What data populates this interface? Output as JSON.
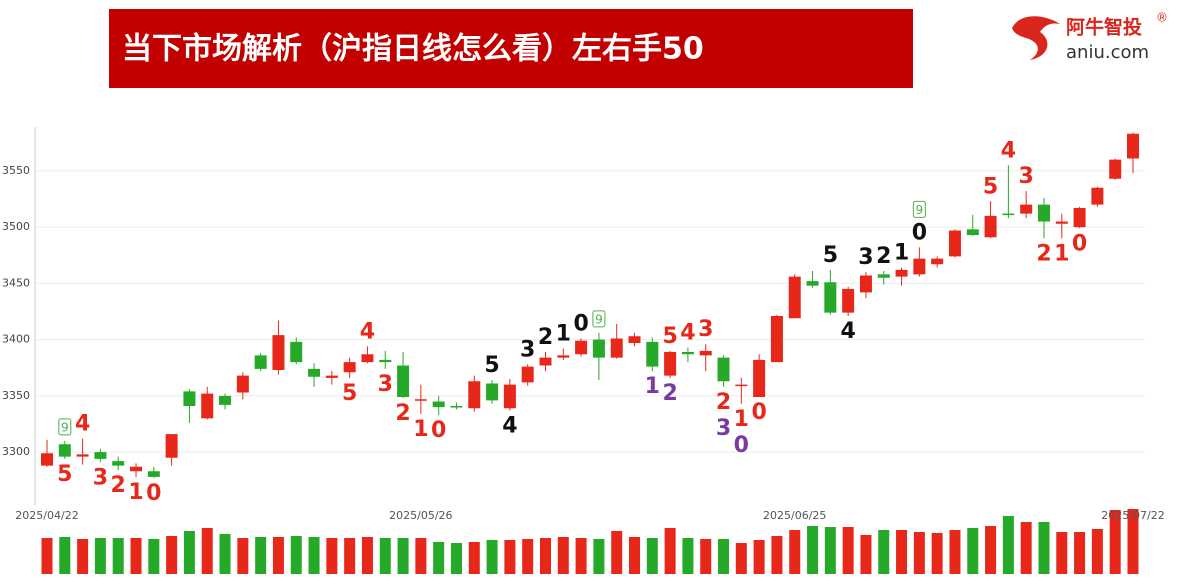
{
  "header": {
    "title": "当下市场解析（沪指日线怎么看）左右手50",
    "logo_name": "阿牛智投",
    "logo_mark": "®",
    "logo_site": "aniu.com"
  },
  "chart_data": {
    "type": "candlestick",
    "categories": [
      "2025/04/22",
      null,
      null,
      null,
      null,
      null,
      null,
      null,
      null,
      null,
      null,
      null,
      null,
      null,
      null,
      null,
      null,
      null,
      null,
      null,
      null,
      "2025/05/26",
      null,
      null,
      null,
      null,
      null,
      null,
      null,
      null,
      null,
      null,
      null,
      null,
      null,
      null,
      null,
      null,
      null,
      null,
      null,
      null,
      "2025/06/25",
      null,
      null,
      null,
      null,
      null,
      null,
      null,
      null,
      null,
      null,
      null,
      null,
      null,
      null,
      null,
      null,
      null,
      null,
      "2025/07/22"
    ],
    "open": [
      3288,
      3307,
      3296,
      3300,
      3292,
      3283,
      3283,
      3295,
      3354,
      3330,
      3350,
      3353,
      3386,
      3373,
      3398,
      3374,
      3366,
      3371,
      3380,
      3382,
      3377,
      3346,
      3345,
      3341,
      3339,
      3361,
      3339,
      3362,
      3377,
      3384,
      3387,
      3400,
      3384,
      3397,
      3398,
      3368,
      3389,
      3386,
      3384,
      3359,
      3349,
      3380,
      3419,
      3452,
      3451,
      3424,
      3442,
      3458,
      3456,
      3458,
      3467,
      3474,
      3498,
      3491,
      3512,
      3512,
      3520,
      3503,
      3500,
      3520,
      3543,
      3561
    ],
    "high": [
      3311,
      3310,
      3312,
      3303,
      3296,
      3290,
      3287,
      3316,
      3356,
      3358,
      3352,
      3371,
      3388,
      3417,
      3402,
      3379,
      3372,
      3384,
      3394,
      3390,
      3389,
      3360,
      3350,
      3344,
      3368,
      3364,
      3365,
      3378,
      3389,
      3392,
      3401,
      3406,
      3414,
      3406,
      3402,
      3390,
      3393,
      3396,
      3386,
      3366,
      3387,
      3422,
      3458,
      3461,
      3462,
      3447,
      3460,
      3461,
      3464,
      3482,
      3474,
      3498,
      3511,
      3523,
      3555,
      3532,
      3526,
      3512,
      3518,
      3536,
      3561,
      3584
    ],
    "low": [
      3287,
      3294,
      3289,
      3291,
      3284,
      3278,
      3277,
      3288,
      3326,
      3329,
      3338,
      3347,
      3372,
      3369,
      3378,
      3358,
      3360,
      3366,
      3379,
      3374,
      3348,
      3334,
      3333,
      3338,
      3336,
      3343,
      3337,
      3359,
      3372,
      3382,
      3385,
      3364,
      3383,
      3394,
      3372,
      3366,
      3380,
      3372,
      3358,
      3343,
      3349,
      3380,
      3419,
      3446,
      3422,
      3421,
      3437,
      3449,
      3448,
      3456,
      3464,
      3473,
      3492,
      3490,
      3508,
      3508,
      3490,
      3490,
      3499,
      3518,
      3542,
      3548
    ],
    "close": [
      3299,
      3296,
      3298,
      3294,
      3288,
      3287,
      3278,
      3316,
      3341,
      3352,
      3342,
      3368,
      3374,
      3404,
      3380,
      3367,
      3368,
      3380,
      3387,
      3380,
      3349,
      3347,
      3340,
      3340,
      3363,
      3346,
      3360,
      3376,
      3384,
      3386,
      3399,
      3384,
      3401,
      3403,
      3376,
      3389,
      3387,
      3390,
      3363,
      3360,
      3382,
      3421,
      3456,
      3448,
      3424,
      3445,
      3457,
      3455,
      3462,
      3472,
      3472,
      3497,
      3493,
      3510,
      3511,
      3520,
      3505,
      3505,
      3517,
      3535,
      3560,
      3583
    ],
    "volume": [
      36,
      37,
      35,
      36,
      36,
      36,
      35,
      38,
      43,
      46,
      40,
      36,
      37,
      37,
      38,
      37,
      36,
      36,
      37,
      36,
      36,
      36,
      32,
      31,
      32,
      34,
      34,
      35,
      36,
      37,
      36,
      35,
      43,
      37,
      36,
      46,
      36,
      35,
      35,
      31,
      34,
      38,
      44,
      48,
      47,
      47,
      39,
      44,
      44,
      42,
      41,
      44,
      46,
      48,
      58,
      52,
      52,
      42,
      42,
      45,
      64,
      65
    ],
    "up_color": "#e8271b",
    "down_color": "#26a828",
    "ylim": [
      3253,
      3589
    ],
    "yticks": [
      3300,
      3350,
      3400,
      3450,
      3500,
      3550
    ],
    "grid": true,
    "sequences": [
      {
        "color": "#e8271b",
        "above": [
          null,
          null,
          "4",
          null,
          null,
          null,
          null,
          null,
          null,
          null,
          null,
          null,
          null,
          null,
          null,
          null,
          null,
          null,
          "4",
          null,
          null,
          null,
          null,
          null,
          null,
          null,
          null,
          null,
          null,
          null,
          null,
          null,
          null,
          null,
          null,
          "5",
          "4",
          "3",
          null,
          null,
          null,
          null,
          null,
          null,
          null,
          null,
          null,
          null,
          null,
          null,
          null,
          null,
          null,
          "5",
          "4",
          "3",
          null,
          null,
          null,
          null,
          null,
          null
        ],
        "below": [
          null,
          "5",
          null,
          "3",
          "2",
          "1",
          "0",
          null,
          null,
          null,
          null,
          null,
          null,
          null,
          null,
          null,
          null,
          "5",
          null,
          "3",
          "2",
          "1",
          "0",
          null,
          null,
          null,
          null,
          null,
          null,
          null,
          null,
          null,
          null,
          null,
          null,
          null,
          null,
          null,
          "2",
          "1",
          "0",
          null,
          null,
          null,
          null,
          null,
          null,
          null,
          null,
          null,
          null,
          null,
          null,
          null,
          null,
          null,
          "2",
          "1",
          "0",
          null,
          null,
          null
        ]
      },
      {
        "color": "#111111",
        "above": [
          null,
          null,
          null,
          null,
          null,
          null,
          null,
          null,
          null,
          null,
          null,
          null,
          null,
          null,
          null,
          null,
          null,
          null,
          null,
          null,
          null,
          null,
          null,
          null,
          null,
          "5",
          null,
          "3",
          "2",
          "1",
          "0",
          null,
          null,
          null,
          null,
          null,
          null,
          null,
          null,
          null,
          null,
          null,
          null,
          null,
          "5",
          null,
          "3",
          "2",
          "1",
          "0",
          null,
          null,
          null,
          null,
          null,
          null,
          null,
          null,
          null,
          null,
          null,
          null
        ],
        "below": [
          null,
          null,
          null,
          null,
          null,
          null,
          null,
          null,
          null,
          null,
          null,
          null,
          null,
          null,
          null,
          null,
          null,
          null,
          null,
          null,
          null,
          null,
          null,
          null,
          null,
          null,
          "4",
          null,
          null,
          null,
          null,
          null,
          null,
          null,
          null,
          null,
          null,
          null,
          null,
          null,
          null,
          null,
          null,
          null,
          null,
          "4",
          null,
          null,
          null,
          null,
          null,
          null,
          null,
          null,
          null,
          null,
          null,
          null,
          null,
          null,
          null,
          null
        ]
      },
      {
        "color": "#7b3aa0",
        "below": [
          null,
          null,
          null,
          null,
          null,
          null,
          null,
          null,
          null,
          null,
          null,
          null,
          null,
          null,
          null,
          null,
          null,
          null,
          null,
          null,
          null,
          null,
          null,
          null,
          null,
          null,
          null,
          null,
          null,
          null,
          null,
          null,
          null,
          null,
          "1",
          "2",
          null,
          null,
          "3",
          "0",
          null,
          null,
          null,
          null,
          null,
          null,
          null,
          null,
          null,
          null,
          null,
          null,
          null,
          null,
          null,
          null,
          null,
          null,
          null,
          null,
          null,
          null
        ]
      }
    ],
    "nine": {
      "color": "#4caf50",
      "above": [
        null,
        "9",
        null,
        null,
        null,
        null,
        null,
        null,
        null,
        null,
        null,
        null,
        null,
        null,
        null,
        null,
        null,
        null,
        null,
        null,
        null,
        null,
        null,
        null,
        null,
        null,
        null,
        null,
        null,
        null,
        null,
        "9",
        null,
        null,
        null,
        null,
        null,
        null,
        null,
        null,
        null,
        null,
        null,
        null,
        null,
        null,
        null,
        null,
        null,
        "9",
        null,
        null,
        null,
        null,
        null,
        null,
        null,
        null,
        null,
        null,
        null,
        null
      ]
    }
  }
}
